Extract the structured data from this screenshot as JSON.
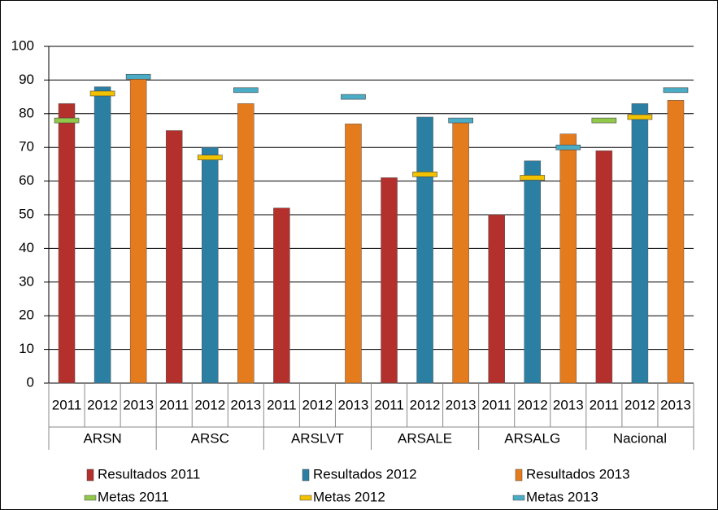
{
  "chart_data": {
    "type": "bar",
    "categories": [
      "2011",
      "2012",
      "2013",
      "2011",
      "2012",
      "2013",
      "2011",
      "2012",
      "2013",
      "2011",
      "2012",
      "2013",
      "2011",
      "2012",
      "2013",
      "2011",
      "2012",
      "2013"
    ],
    "groups": [
      "ARSN",
      "ARSC",
      "ARSLVT",
      "ARSALE",
      "ARSALG",
      "Nacional"
    ],
    "series": [
      {
        "name": "Resultados 2011",
        "color": "#b3302c",
        "mark": "bar",
        "values": [
          83,
          null,
          null,
          75,
          null,
          null,
          52,
          null,
          null,
          61,
          null,
          null,
          50,
          null,
          null,
          69,
          null,
          null
        ]
      },
      {
        "name": "Resultados 2012",
        "color": "#2b7fa3",
        "mark": "bar",
        "values": [
          null,
          88,
          null,
          null,
          70,
          null,
          null,
          null,
          null,
          null,
          79,
          null,
          null,
          66,
          null,
          null,
          83,
          null
        ]
      },
      {
        "name": "Resultados 2013",
        "color": "#e47c1e",
        "mark": "bar",
        "values": [
          null,
          null,
          91,
          null,
          null,
          83,
          null,
          null,
          77,
          null,
          null,
          78,
          null,
          null,
          74,
          null,
          null,
          84
        ]
      },
      {
        "name": "Metas 2011",
        "color": "#92c84a",
        "mark": "dash",
        "values": [
          78,
          null,
          null,
          null,
          null,
          null,
          null,
          null,
          null,
          null,
          null,
          null,
          null,
          null,
          null,
          78,
          null,
          null
        ]
      },
      {
        "name": "Metas 2012",
        "color": "#f2c200",
        "mark": "dash",
        "values": [
          null,
          86,
          null,
          null,
          67,
          null,
          null,
          null,
          null,
          null,
          62,
          null,
          null,
          61,
          null,
          null,
          79,
          null
        ]
      },
      {
        "name": "Metas 2013",
        "color": "#4bacc6",
        "mark": "dash",
        "values": [
          null,
          null,
          91,
          null,
          null,
          87,
          null,
          null,
          85,
          null,
          null,
          78,
          null,
          null,
          70,
          null,
          null,
          87
        ]
      }
    ],
    "ylim": [
      0,
      100
    ],
    "yticks": [
      0,
      10,
      20,
      30,
      40,
      50,
      60,
      70,
      80,
      90,
      100
    ],
    "grid": true
  }
}
